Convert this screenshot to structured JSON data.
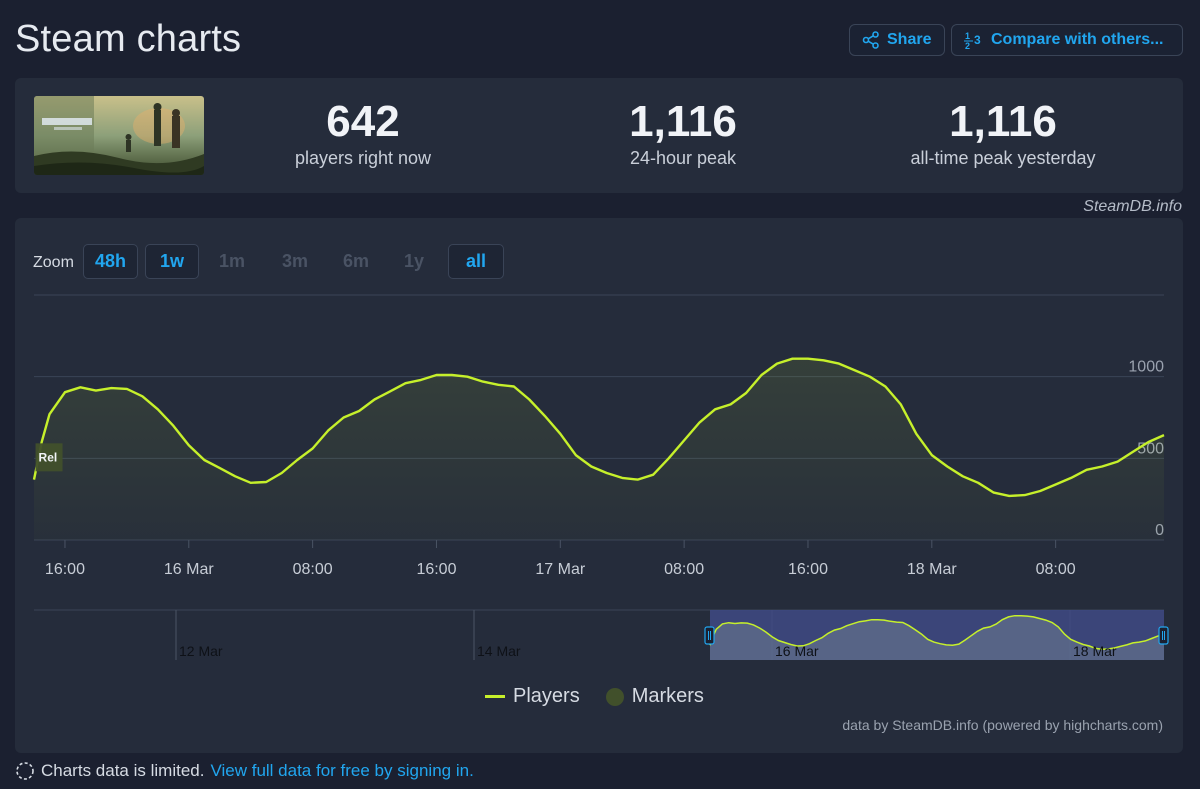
{
  "header": {
    "title": "Steam charts",
    "share_label": "Share",
    "compare_label": "Compare with others..."
  },
  "stats": [
    {
      "value": "642",
      "label": "players right now"
    },
    {
      "value": "1,116",
      "label": "24-hour peak"
    },
    {
      "value": "1,116",
      "label": "all-time peak yesterday"
    }
  ],
  "credit": "SteamDB.info",
  "zoom": {
    "label": "Zoom",
    "options": [
      {
        "label": "48h",
        "active": true
      },
      {
        "label": "1w",
        "active": true
      },
      {
        "label": "1m",
        "active": false
      },
      {
        "label": "3m",
        "active": false
      },
      {
        "label": "6m",
        "active": false
      },
      {
        "label": "1y",
        "active": false
      },
      {
        "label": "all",
        "active": true
      }
    ]
  },
  "marker_label": "Rel",
  "legend": {
    "players": "Players",
    "markers": "Markers"
  },
  "chart_credit": "data by SteamDB.info (powered by highcharts.com)",
  "footer": {
    "text": "Charts data is limited.",
    "link": "View full data for free by signing in."
  },
  "colors": {
    "accent": "#21a6ef",
    "series": "#c6f02b",
    "marker": "#41502b",
    "navigator_selection": "#3f4a85"
  },
  "chart_data": {
    "type": "area",
    "title": "",
    "series": [
      {
        "name": "Players",
        "color": "#c6f02b"
      }
    ],
    "x_unit": "hours since 15 Mar 14:00",
    "x_tick_labels": [
      {
        "t": 2,
        "label": "16:00"
      },
      {
        "t": 10,
        "label": "16 Mar"
      },
      {
        "t": 18,
        "label": "08:00"
      },
      {
        "t": 26,
        "label": "16:00"
      },
      {
        "t": 34,
        "label": "17 Mar"
      },
      {
        "t": 42,
        "label": "08:00"
      },
      {
        "t": 50,
        "label": "16:00"
      },
      {
        "t": 58,
        "label": "18 Mar"
      },
      {
        "t": 66,
        "label": "08:00"
      }
    ],
    "y_ticks": [
      0,
      500,
      1000
    ],
    "ylim": [
      0,
      1500
    ],
    "xlim": [
      0,
      73
    ],
    "marker": {
      "t": 0.1,
      "label": "Rel"
    },
    "points": [
      [
        0,
        370
      ],
      [
        0.5,
        600
      ],
      [
        1,
        770
      ],
      [
        2,
        905
      ],
      [
        3,
        935
      ],
      [
        4,
        915
      ],
      [
        5,
        930
      ],
      [
        6,
        925
      ],
      [
        7,
        880
      ],
      [
        8,
        800
      ],
      [
        9,
        700
      ],
      [
        10,
        580
      ],
      [
        11,
        490
      ],
      [
        12,
        440
      ],
      [
        13,
        390
      ],
      [
        14,
        350
      ],
      [
        15,
        355
      ],
      [
        16,
        410
      ],
      [
        17,
        490
      ],
      [
        18,
        560
      ],
      [
        19,
        670
      ],
      [
        20,
        750
      ],
      [
        21,
        790
      ],
      [
        22,
        860
      ],
      [
        23,
        910
      ],
      [
        24,
        960
      ],
      [
        25,
        980
      ],
      [
        26,
        1010
      ],
      [
        27,
        1010
      ],
      [
        28,
        1000
      ],
      [
        29,
        970
      ],
      [
        30,
        950
      ],
      [
        31,
        940
      ],
      [
        32,
        860
      ],
      [
        33,
        760
      ],
      [
        34,
        650
      ],
      [
        35,
        520
      ],
      [
        36,
        450
      ],
      [
        37,
        410
      ],
      [
        38,
        380
      ],
      [
        39,
        370
      ],
      [
        40,
        400
      ],
      [
        41,
        500
      ],
      [
        42,
        610
      ],
      [
        43,
        720
      ],
      [
        44,
        800
      ],
      [
        45,
        830
      ],
      [
        46,
        900
      ],
      [
        47,
        1010
      ],
      [
        48,
        1080
      ],
      [
        49,
        1110
      ],
      [
        50,
        1110
      ],
      [
        51,
        1100
      ],
      [
        52,
        1080
      ],
      [
        53,
        1040
      ],
      [
        54,
        1000
      ],
      [
        55,
        940
      ],
      [
        56,
        830
      ],
      [
        57,
        650
      ],
      [
        58,
        520
      ],
      [
        59,
        450
      ],
      [
        60,
        390
      ],
      [
        61,
        350
      ],
      [
        62,
        290
      ],
      [
        63,
        270
      ],
      [
        64,
        275
      ],
      [
        65,
        300
      ],
      [
        66,
        340
      ],
      [
        67,
        380
      ],
      [
        68,
        430
      ],
      [
        69,
        450
      ],
      [
        70,
        480
      ],
      [
        71,
        540
      ],
      [
        72,
        600
      ],
      [
        73,
        642
      ]
    ],
    "navigator": {
      "labels": [
        {
          "label": "12 Mar"
        },
        {
          "label": "14 Mar"
        },
        {
          "label": "16 Mar"
        },
        {
          "label": "18 Mar"
        }
      ]
    }
  }
}
